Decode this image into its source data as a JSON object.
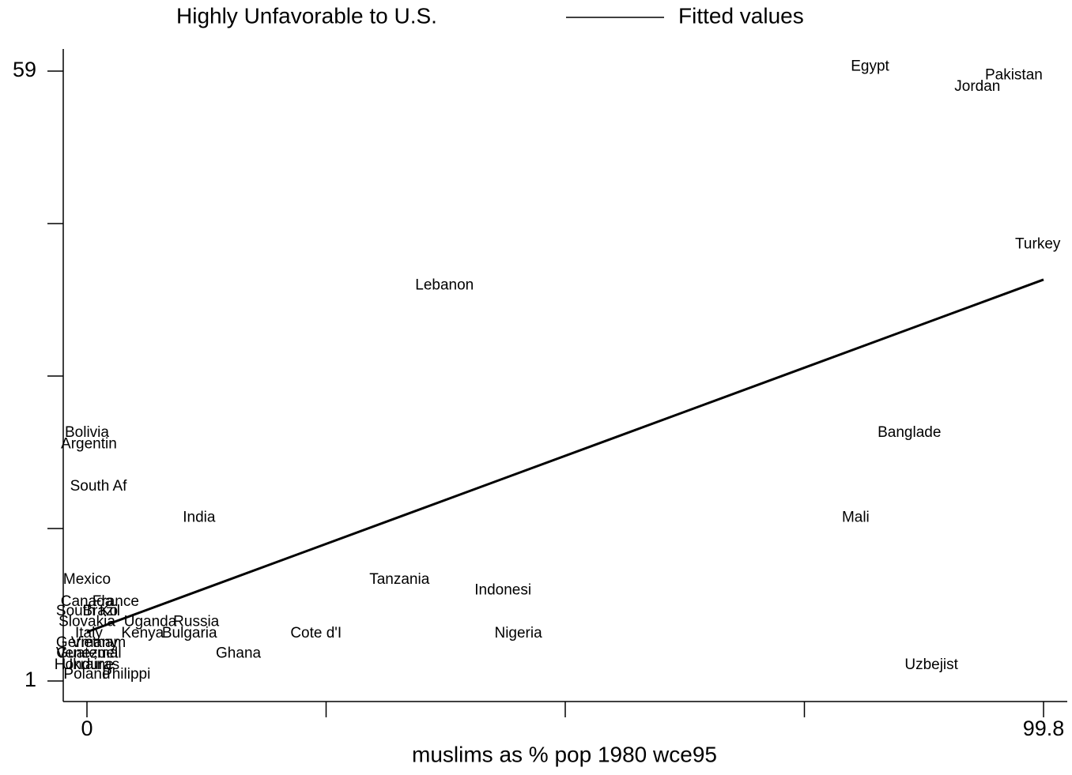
{
  "chart_data": {
    "type": "scatter",
    "xlabel": "muslims as % pop 1980 wce95",
    "xlim": [
      0,
      99.8
    ],
    "xticks": [
      0,
      99.8
    ],
    "xminor_ticks": [
      24.95,
      49.9,
      74.85
    ],
    "ylim": [
      1,
      59
    ],
    "yticks": [
      1,
      59
    ],
    "yminor_ticks": [
      15.5,
      30,
      44.5
    ],
    "series": [
      {
        "name": "Highly Unfavorable to U.S.",
        "color": "#000000",
        "marker": "label",
        "labels": [
          "Egypt",
          "Pakistan",
          "Jordan",
          "Turkey",
          "Lebanon",
          "Banglade",
          "Bolivia",
          "Argentin",
          "South Af",
          "India",
          "Mali",
          "Mexico",
          "Tanzania",
          "Indonesi",
          "Canada",
          "France",
          "South Ko",
          "Brazil",
          "Slovakia",
          "Uganda",
          "Russia",
          "Italy",
          "Kenya",
          "Bulgaria",
          "Cote d'I",
          "Nigeria",
          "Germany",
          "Vietnam",
          "Venezuel",
          "Guatemal",
          "Ghana",
          "Honduras",
          "Ukraine",
          "Uzbejist",
          "Poland",
          "Philippi"
        ],
        "x": [
          81.7,
          96.7,
          92.9,
          99.2,
          37.3,
          85.8,
          0,
          0.2,
          1.2,
          11.7,
          80.2,
          0,
          32.6,
          43.4,
          0,
          3.0,
          0,
          1.5,
          0,
          6.6,
          11.4,
          0.2,
          5.8,
          10.7,
          23.9,
          45.0,
          0,
          1.2,
          0,
          0.2,
          15.8,
          0,
          0.1,
          88.1,
          0,
          4.1
        ],
        "values": [
          59.4,
          58.6,
          57.5,
          42.5,
          38.6,
          24.6,
          24.6,
          23.5,
          19.5,
          16.5,
          16.5,
          10.6,
          10.6,
          9.6,
          8.5,
          8.5,
          7.6,
          7.6,
          6.6,
          6.6,
          6.6,
          5.5,
          5.5,
          5.5,
          5.5,
          5.5,
          4.6,
          4.6,
          3.6,
          3.6,
          3.6,
          2.5,
          2.5,
          2.5,
          1.6,
          1.6
        ]
      },
      {
        "name": "Fitted values",
        "color": "#000000",
        "marker": "line",
        "x": [
          0,
          99.8
        ],
        "values": [
          5.66,
          39.17
        ]
      }
    ]
  }
}
